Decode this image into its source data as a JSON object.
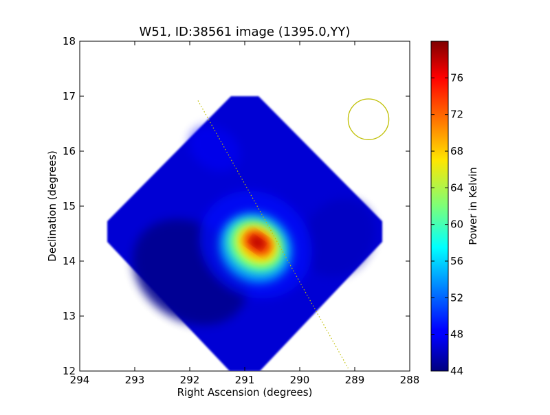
{
  "chart_data": {
    "type": "heatmap",
    "title": "W51, ID:38561 image (1395.0,YY)",
    "xlabel": "Right Ascension (degrees)",
    "ylabel": "Declination (degrees)",
    "xlim": [
      294,
      288
    ],
    "ylim": [
      12,
      18
    ],
    "xticks": [
      "294",
      "293",
      "292",
      "291",
      "290",
      "289",
      "288"
    ],
    "yticks": [
      "12",
      "13",
      "14",
      "15",
      "16",
      "17",
      "18"
    ],
    "colorbar": {
      "label": "Power in Kelvin",
      "range": [
        44,
        80
      ],
      "ticks": [
        "44",
        "48",
        "52",
        "56",
        "60",
        "64",
        "68",
        "72",
        "76"
      ],
      "colormap": "jet"
    },
    "map_region": {
      "shape": "diamond",
      "center": [
        291.0,
        14.5
      ],
      "extent_ra": [
        293.5,
        288.5
      ],
      "extent_dec": [
        12.0,
        17.0
      ],
      "background_value": 47
    },
    "peak": {
      "ra": 290.8,
      "dec": 14.3,
      "value": 79
    },
    "beam_circle": {
      "ra": 288.75,
      "dec": 16.58,
      "radius_deg": 0.37,
      "color": "#bfbf00"
    },
    "scan_line": {
      "from": [
        291.85,
        16.92
      ],
      "to": [
        289.12,
        12.05
      ],
      "color": "#bfbf00"
    }
  }
}
